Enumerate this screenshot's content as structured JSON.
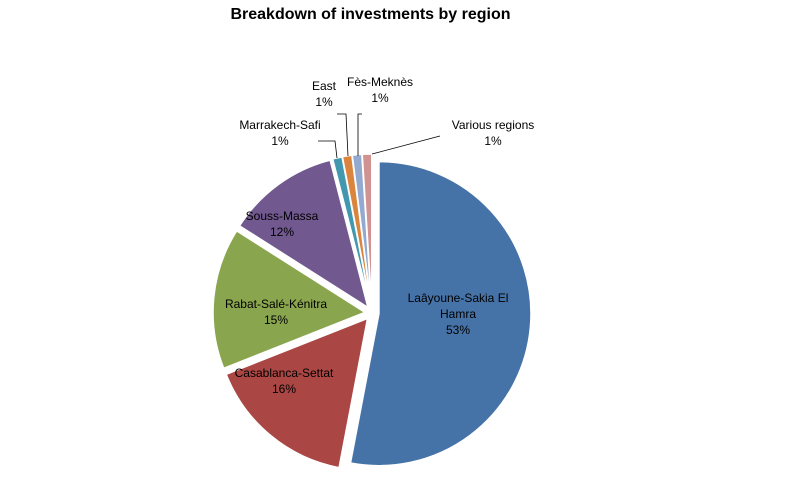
{
  "chart_data": {
    "type": "pie",
    "title": "Breakdown of investments by region",
    "slices": [
      {
        "name": "Laâyoune-Sakia El Hamra",
        "label_lines": [
          "Laâyoune-Sakia El",
          "Hamra"
        ],
        "value": 53,
        "label": "53%",
        "color": "#4572A7"
      },
      {
        "name": "Casablanca-Settat",
        "label_lines": [
          "Casablanca-Settat"
        ],
        "value": 16,
        "label": "16%",
        "color": "#AA4643"
      },
      {
        "name": "Rabat-Salé-Kénitra",
        "label_lines": [
          "Rabat-Salé-Kénitra"
        ],
        "value": 15,
        "label": "15%",
        "color": "#89A54E"
      },
      {
        "name": "Souss-Massa",
        "label_lines": [
          "Souss-Massa"
        ],
        "value": 12,
        "label": "12%",
        "color": "#71588F"
      },
      {
        "name": "Marrakech-Safi",
        "label_lines": [
          "Marrakech-Safi"
        ],
        "value": 1,
        "label": "1%",
        "color": "#4198AF"
      },
      {
        "name": "East",
        "label_lines": [
          "East"
        ],
        "value": 1,
        "label": "1%",
        "color": "#DB843D"
      },
      {
        "name": "Fès-Meknès",
        "label_lines": [
          "Fès-Meknès"
        ],
        "value": 1,
        "label": "1%",
        "color": "#93A9CF"
      },
      {
        "name": "Various regions",
        "label_lines": [
          "Various regions"
        ],
        "value": 1,
        "label": "1%",
        "color": "#D19392"
      }
    ]
  }
}
